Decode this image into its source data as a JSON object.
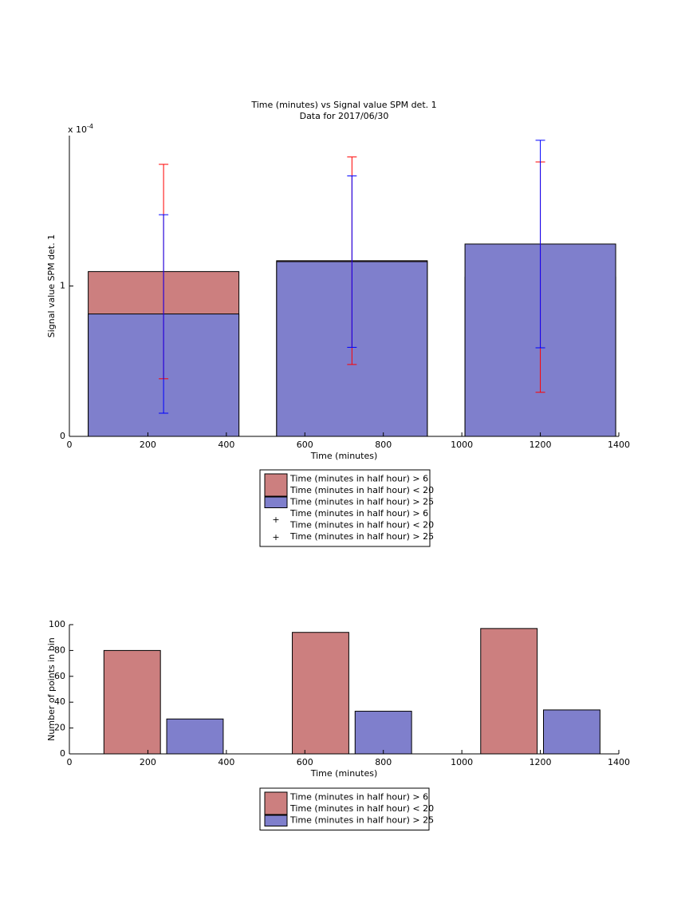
{
  "chart_data": [
    {
      "type": "bar",
      "barmode": "overlay",
      "title": "Time (minutes) vs Signal value SPM det. 1",
      "subtitle": "Data for 2017/06/30",
      "y_scale_label": {
        "base": "x 10",
        "exponent": "-4"
      },
      "x_label": "Time (minutes)",
      "y_label": "Signal value SPM det. 1",
      "x": [
        240,
        720,
        1200
      ],
      "xlim": [
        0,
        1400
      ],
      "xticks": [
        0,
        200,
        400,
        600,
        800,
        1000,
        1200,
        1400
      ],
      "ylim": [
        0,
        2
      ],
      "yticks": [
        0,
        1
      ],
      "series": [
        {
          "name": [
            "Time (minutes in half hour) > 6",
            "Time (minutes in half hour) < 20"
          ],
          "color": "#cc7f7f",
          "error_color": "#ff0000",
          "values": [
            1.096,
            1.168,
            1.059
          ],
          "errors": [
            0.713,
            0.69,
            0.766
          ]
        },
        {
          "name": [
            "Time (minutes in half hour) > 25"
          ],
          "color": "#7f7fcc",
          "error_color": "#0000ff",
          "values": [
            0.814,
            1.162,
            1.279
          ],
          "errors": [
            0.66,
            0.57,
            0.69
          ]
        }
      ]
    },
    {
      "type": "bar",
      "barmode": "group",
      "x_label": "Time (minutes)",
      "y_label": "Number of points in bin",
      "x": [
        240,
        720,
        1200
      ],
      "xlim": [
        0,
        1400
      ],
      "xticks": [
        0,
        200,
        400,
        600,
        800,
        1000,
        1200,
        1400
      ],
      "ylim": [
        0,
        100
      ],
      "yticks": [
        0,
        20,
        40,
        60,
        80,
        100
      ],
      "series": [
        {
          "name": [
            "Time (minutes in half hour) > 6",
            "Time (minutes in half hour) < 20"
          ],
          "color": "#cc7f7f",
          "values": [
            80,
            94,
            97
          ]
        },
        {
          "name": [
            "Time (minutes in half hour) > 25"
          ],
          "color": "#7f7fcc",
          "values": [
            27,
            33,
            34
          ]
        }
      ]
    }
  ]
}
